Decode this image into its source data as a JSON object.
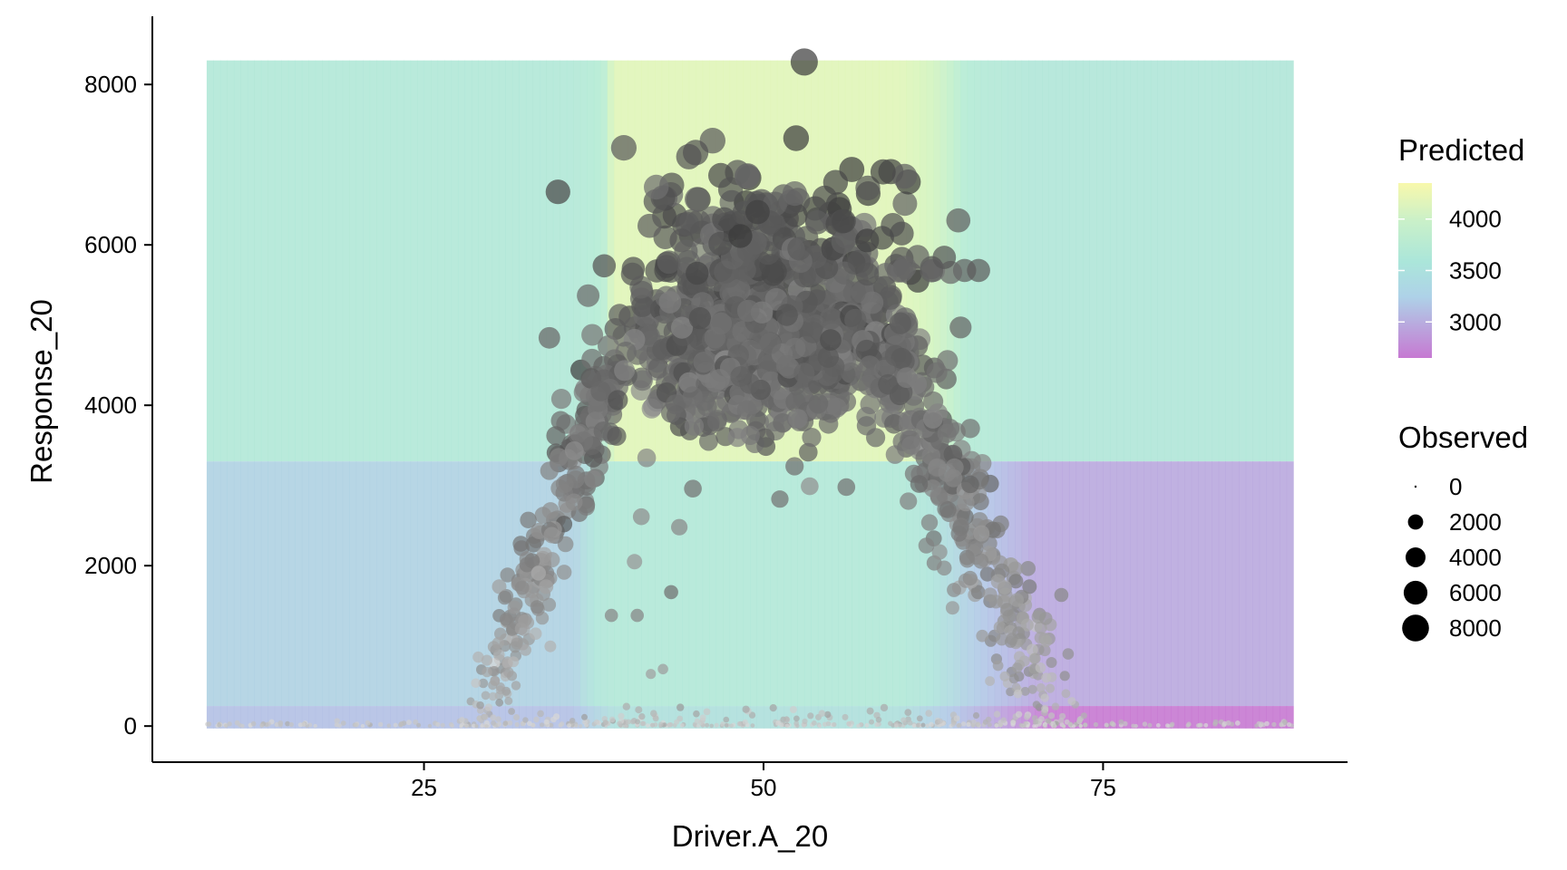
{
  "chart_data": {
    "type": "scatter",
    "title": "",
    "xlabel": "Driver.A_20",
    "ylabel": "Response_20",
    "xlim": [
      5,
      93
    ],
    "ylim": [
      -450,
      8850
    ],
    "x_ticks": [
      25,
      50,
      75
    ],
    "x_tick_labels": [
      "25",
      "50",
      "75"
    ],
    "y_ticks": [
      0,
      2000,
      4000,
      6000,
      8000
    ],
    "y_tick_labels": [
      "0",
      "2000",
      "4000",
      "6000",
      "8000"
    ],
    "grid": false,
    "background_surface": {
      "name": "Predicted",
      "x_range": [
        9,
        89
      ],
      "y_range": [
        -30,
        8300
      ],
      "y_split": 3300,
      "upper_band": [
        {
          "x": 9,
          "value": 3650
        },
        {
          "x": 36,
          "value": 3650
        },
        {
          "x": 38.5,
          "value": 3850
        },
        {
          "x": 39,
          "value": 4120
        },
        {
          "x": 60,
          "value": 4120
        },
        {
          "x": 63,
          "value": 3950
        },
        {
          "x": 66,
          "value": 3700
        },
        {
          "x": 70,
          "value": 3560
        },
        {
          "x": 89,
          "value": 3560
        }
      ],
      "lower_band": [
        {
          "x": 9,
          "value": 3250
        },
        {
          "x": 36,
          "value": 3250
        },
        {
          "x": 39,
          "value": 3650
        },
        {
          "x": 60,
          "value": 3650
        },
        {
          "x": 63,
          "value": 3400
        },
        {
          "x": 66,
          "value": 3150
        },
        {
          "x": 70,
          "value": 2950
        },
        {
          "x": 89,
          "value": 2950
        }
      ],
      "floor_band": [
        {
          "x": 9,
          "value": 3100
        },
        {
          "x": 36,
          "value": 3100
        },
        {
          "x": 39,
          "value": 3400
        },
        {
          "x": 60,
          "value": 3400
        },
        {
          "x": 66,
          "value": 3000
        },
        {
          "x": 71,
          "value": 2650
        },
        {
          "x": 89,
          "value": 2650
        }
      ]
    },
    "points_model": {
      "description": "Observed points: gray circles, size and darkness scale with Observed value",
      "count": 2200,
      "peak_x": 53,
      "peak_y": 8280
    },
    "highlight_points": [
      {
        "x": 53,
        "y": 8280
      },
      {
        "x": 52.4,
        "y": 7330
      },
      {
        "x": 44.5,
        "y": 7100
      },
      {
        "x": 45,
        "y": 7150
      },
      {
        "x": 56.5,
        "y": 6940
      },
      {
        "x": 58.8,
        "y": 6910
      },
      {
        "x": 52.3,
        "y": 6640
      },
      {
        "x": 45.1,
        "y": 6570
      },
      {
        "x": 47.1,
        "y": 6320
      },
      {
        "x": 55.3,
        "y": 6780
      },
      {
        "x": 42.1,
        "y": 6720
      },
      {
        "x": 51.2,
        "y": 2830
      },
      {
        "x": 53.4,
        "y": 2990
      },
      {
        "x": 56.1,
        "y": 2980
      },
      {
        "x": 44.8,
        "y": 2960
      },
      {
        "x": 43.8,
        "y": 2480
      },
      {
        "x": 43.2,
        "y": 1670
      },
      {
        "x": 42.6,
        "y": 710
      },
      {
        "x": 41.7,
        "y": 650
      },
      {
        "x": 38.8,
        "y": 1380
      },
      {
        "x": 40.7,
        "y": 1380
      },
      {
        "x": 40.5,
        "y": 2050
      },
      {
        "x": 41,
        "y": 2610
      },
      {
        "x": 63.3,
        "y": 1970
      },
      {
        "x": 63.5,
        "y": 3650
      }
    ],
    "legend": {
      "predicted": {
        "title": "Predicted",
        "breaks": [
          4000,
          3500,
          3000
        ],
        "break_labels": [
          "4000",
          "3500",
          "3000"
        ],
        "range": [
          2650,
          4350
        ],
        "colors": [
          "#c679d2",
          "#aed2e8",
          "#b8eadb",
          "#f8f8ac"
        ]
      },
      "observed": {
        "title": "Observed",
        "breaks": [
          0,
          2000,
          4000,
          6000,
          8000
        ],
        "break_labels": [
          "0",
          "2000",
          "4000",
          "6000",
          "8000"
        ]
      },
      "position": "right"
    }
  }
}
